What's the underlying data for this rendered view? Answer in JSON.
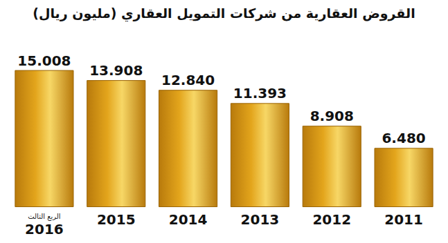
{
  "chart_data": {
    "type": "bar",
    "title": "القروض العقارية من شركات التمويل العقاري (مليون ريال)",
    "categories": [
      "2016",
      "2015",
      "2014",
      "2013",
      "2012",
      "2011"
    ],
    "values": [
      15.008,
      13.908,
      12.84,
      11.393,
      8.908,
      6.48
    ],
    "value_labels": [
      "15.008",
      "13.908",
      "12.840",
      "11.393",
      "8.908",
      "6.480"
    ],
    "annotations": [
      {
        "category": "2016",
        "text": "الربع الثالث"
      }
    ],
    "color": "#e3a51c",
    "data_labels": true,
    "tick_labels": "x",
    "grid": false
  }
}
